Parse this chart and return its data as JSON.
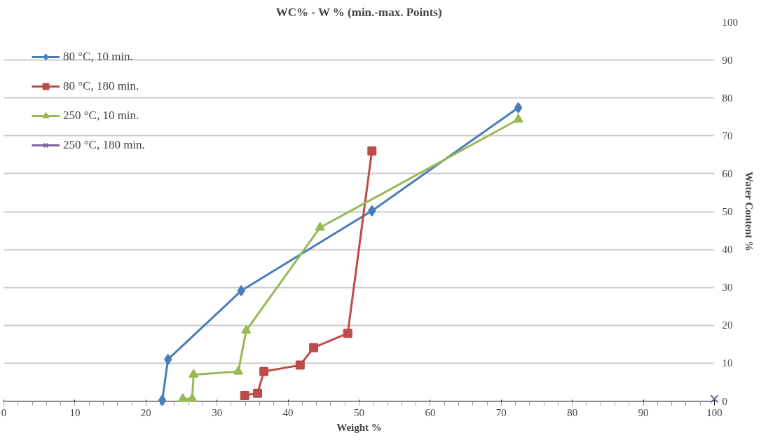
{
  "chart_data": {
    "type": "line",
    "title": "WC% - W % (min.-max. Points)",
    "xlabel": "Weight %",
    "ylabel": "Water Content %",
    "xlim": [
      0,
      100
    ],
    "xticks": [
      0,
      10,
      20,
      30,
      40,
      50,
      60,
      70,
      80,
      90,
      100
    ],
    "ylim": [
      0,
      100
    ],
    "yticks": [
      0,
      10,
      20,
      30,
      40,
      50,
      60,
      70,
      80,
      90,
      100
    ],
    "grid": "y",
    "legend": "top left",
    "line_style": "solid",
    "series": [
      {
        "name": "80 °C, 10 min.",
        "color": "#4a7ebb",
        "marker": "diamond",
        "x": [
          22.3,
          23.1,
          33.4,
          51.8,
          72.4
        ],
        "values": [
          0.2,
          11,
          29.1,
          50.2,
          77.4
        ]
      },
      {
        "name": "80 °C, 180 min.",
        "color": "#be4b48",
        "marker": "square",
        "x": [
          33.9,
          35.7,
          36.6,
          41.7,
          43.6,
          48.4,
          51.8
        ],
        "values": [
          1.5,
          2.1,
          7.8,
          9.5,
          14.1,
          17.9,
          66
        ]
      },
      {
        "name": "250 °C, 10 min.",
        "color": "#98b954",
        "marker": "triangle",
        "x": [
          25.2,
          26.5,
          26.7,
          33,
          34.1,
          44.5,
          72.4
        ],
        "values": [
          0.6,
          0.6,
          7,
          7.8,
          18.6,
          45.8,
          74.3
        ]
      },
      {
        "name": "250 °C, 180 min.",
        "color": "#7d60a0",
        "marker": "cross",
        "x": [
          100
        ],
        "values": [
          0.6
        ]
      }
    ]
  }
}
